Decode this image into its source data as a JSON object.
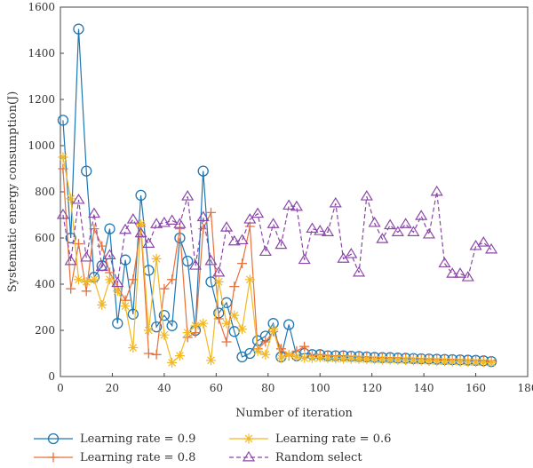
{
  "chart_data": {
    "type": "line",
    "xlabel": "Number of iteration",
    "ylabel": "Systematic energy consumption(J)",
    "xlim": [
      0,
      180
    ],
    "ylim": [
      0,
      1600
    ],
    "xticks": [
      "0",
      "20",
      "40",
      "60",
      "80",
      "100",
      "120",
      "140",
      "160",
      "180"
    ],
    "yticks": [
      "0",
      "200",
      "400",
      "600",
      "800",
      "1000",
      "1200",
      "1400",
      "1600"
    ],
    "grid": false,
    "legend_position": "bottom",
    "series": [
      {
        "name": "Learning rate = 0.9",
        "color": "#1f77b4",
        "marker": "circle",
        "dashed": false,
        "x": [
          1,
          4,
          7,
          10,
          13,
          16,
          19,
          22,
          25,
          28,
          31,
          34,
          37,
          40,
          43,
          46,
          49,
          52,
          55,
          58,
          61,
          64,
          67,
          70,
          73,
          76,
          79,
          82,
          85,
          88,
          91,
          94,
          97,
          100,
          103,
          106,
          109,
          112,
          115,
          118,
          121,
          124,
          127,
          130,
          133,
          136,
          139,
          142,
          145,
          148,
          151,
          154,
          157,
          160,
          163,
          166
        ],
        "y": [
          1110,
          600,
          1505,
          890,
          430,
          480,
          640,
          230,
          505,
          270,
          785,
          460,
          215,
          265,
          220,
          600,
          500,
          200,
          890,
          410,
          275,
          320,
          195,
          85,
          100,
          155,
          175,
          230,
          85,
          225,
          90,
          100,
          95,
          95,
          90,
          90,
          90,
          88,
          87,
          85,
          83,
          82,
          82,
          80,
          79,
          78,
          77,
          76,
          75,
          74,
          73,
          72,
          71,
          70,
          68,
          65
        ]
      },
      {
        "name": "Learning rate = 0.8",
        "color": "#e8703a",
        "marker": "plus",
        "dashed": false,
        "x": [
          1,
          4,
          7,
          10,
          13,
          16,
          19,
          22,
          25,
          28,
          31,
          34,
          37,
          40,
          43,
          46,
          49,
          52,
          55,
          58,
          61,
          64,
          67,
          70,
          73,
          76,
          79,
          82,
          85,
          88,
          91,
          94,
          97,
          100,
          103,
          106,
          109,
          112,
          115,
          118,
          121,
          124,
          127,
          130,
          133,
          136,
          139,
          142,
          145,
          148,
          151,
          154,
          157,
          160,
          163,
          166
        ],
        "y": [
          900,
          380,
          575,
          370,
          640,
          565,
          450,
          390,
          330,
          420,
          650,
          100,
          95,
          380,
          420,
          640,
          170,
          190,
          640,
          710,
          250,
          150,
          390,
          490,
          650,
          120,
          150,
          195,
          120,
          90,
          110,
          130,
          90,
          95,
          92,
          90,
          88,
          88,
          86,
          85,
          84,
          83,
          82,
          81,
          80,
          79,
          78,
          77,
          76,
          75,
          74,
          73,
          72,
          71,
          70,
          68
        ]
      },
      {
        "name": "Learning rate = 0.6",
        "color": "#f2b824",
        "marker": "star",
        "dashed": false,
        "x": [
          1,
          4,
          7,
          10,
          13,
          16,
          19,
          22,
          25,
          28,
          31,
          34,
          37,
          40,
          43,
          46,
          49,
          52,
          55,
          58,
          61,
          64,
          67,
          70,
          73,
          76,
          79,
          82,
          85,
          88,
          91,
          94,
          97,
          100,
          103,
          106,
          109,
          112,
          115,
          118,
          121,
          124,
          127,
          130,
          133,
          136,
          139,
          142,
          145,
          148,
          151,
          154,
          157,
          160,
          163,
          166
        ],
        "y": [
          950,
          770,
          420,
          410,
          420,
          310,
          420,
          370,
          305,
          125,
          660,
          200,
          510,
          180,
          60,
          90,
          190,
          220,
          230,
          70,
          410,
          230,
          265,
          205,
          420,
          110,
          95,
          205,
          80,
          95,
          85,
          80,
          80,
          82,
          80,
          78,
          77,
          77,
          76,
          75,
          74,
          73,
          72,
          72,
          71,
          70,
          69,
          68,
          67,
          66,
          65,
          64,
          63,
          62,
          61,
          60
        ]
      },
      {
        "name": "Random select",
        "color": "#8b47a8",
        "marker": "triangle",
        "dashed": true,
        "x": [
          1,
          4,
          7,
          10,
          13,
          16,
          19,
          22,
          25,
          28,
          31,
          34,
          37,
          40,
          43,
          46,
          49,
          52,
          55,
          58,
          61,
          64,
          67,
          70,
          73,
          76,
          79,
          82,
          85,
          88,
          91,
          94,
          97,
          100,
          103,
          106,
          109,
          112,
          115,
          118,
          121,
          124,
          127,
          130,
          133,
          136,
          139,
          142,
          145,
          148,
          151,
          154,
          157,
          160,
          163,
          166
        ],
        "y": [
          700,
          500,
          765,
          515,
          705,
          475,
          525,
          405,
          635,
          680,
          620,
          575,
          660,
          665,
          675,
          660,
          780,
          480,
          690,
          500,
          450,
          645,
          585,
          590,
          680,
          705,
          540,
          660,
          570,
          740,
          735,
          505,
          640,
          630,
          625,
          750,
          510,
          530,
          450,
          780,
          665,
          595,
          655,
          625,
          660,
          625,
          695,
          615,
          800,
          490,
          445,
          445,
          430,
          565,
          580,
          550
        ]
      }
    ]
  }
}
